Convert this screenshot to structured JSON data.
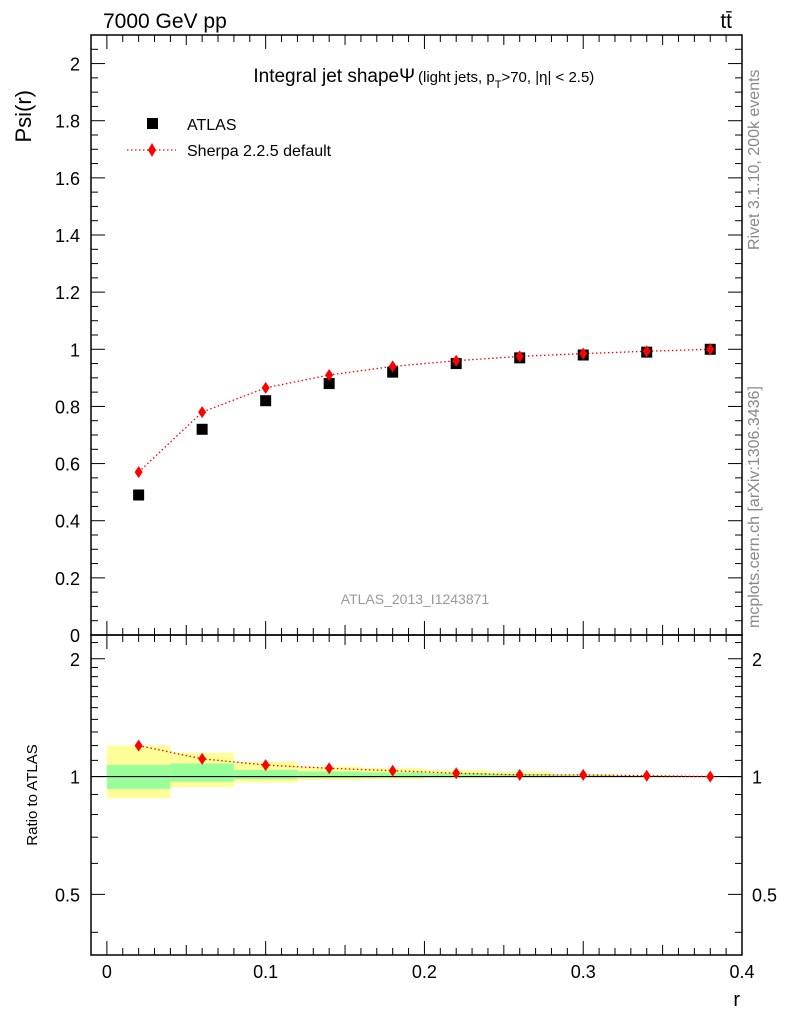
{
  "header": {
    "left": "7000 GeV pp",
    "right": "tt̄"
  },
  "side_labels": {
    "rivet": "Rivet 3.1.10,  200k events",
    "mcplots": "mcplots.cern.ch [arXiv:1306.3436]"
  },
  "chart_data": [
    {
      "type": "scatter",
      "title": "Integral jet shapeΨ",
      "title_sub": "(light jets, p",
      "title_sub_T": "T",
      "title_sub_rest": ">70, |η| < 2.5)",
      "ylabel": "Psi(r)",
      "analysis_label": "ATLAS_2013_I1243871",
      "xlim": [
        -0.01,
        0.4
      ],
      "ylim": [
        0,
        2.1
      ],
      "y_ticks": [
        "0.2",
        "0.4",
        "0.6",
        "0.8",
        "1",
        "1.2",
        "1.4",
        "1.6",
        "1.8",
        "2"
      ],
      "y_tick_values": [
        0.2,
        0.4,
        0.6,
        0.8,
        1.0,
        1.2,
        1.4,
        1.6,
        1.8,
        2.0
      ],
      "y_tick_zero": "0",
      "legend_position": "top-left",
      "series": [
        {
          "name": "ATLAS",
          "marker": "square",
          "color": "#000000",
          "x": [
            0.02,
            0.06,
            0.1,
            0.14,
            0.18,
            0.22,
            0.26,
            0.3,
            0.34,
            0.38
          ],
          "y": [
            0.49,
            0.72,
            0.82,
            0.88,
            0.92,
            0.95,
            0.97,
            0.98,
            0.99,
            1.0
          ]
        },
        {
          "name": "Sherpa 2.2.5 default",
          "marker": "diamond",
          "color": "#ff0000",
          "line": "dotted",
          "x": [
            0.02,
            0.06,
            0.1,
            0.14,
            0.18,
            0.22,
            0.26,
            0.3,
            0.34,
            0.38
          ],
          "y": [
            0.57,
            0.78,
            0.865,
            0.91,
            0.94,
            0.96,
            0.975,
            0.985,
            0.993,
            1.0
          ]
        }
      ]
    },
    {
      "type": "scatter",
      "ylabel": "Ratio to ATLAS",
      "xlabel": "r",
      "xlim": [
        -0.01,
        0.4
      ],
      "ylim": [
        0.35,
        2.3
      ],
      "scale": "log",
      "y_ticks": [
        "0.5",
        "1",
        "2"
      ],
      "y_tick_values": [
        0.5,
        1,
        2
      ],
      "x_ticks": [
        "0",
        "0.1",
        "0.2",
        "0.3",
        "0.4"
      ],
      "x_tick_values": [
        0,
        0.1,
        0.2,
        0.3,
        0.4
      ],
      "bands": {
        "yellow_color": "#ffff99",
        "green_color": "#99ff99",
        "bins": [
          {
            "lo": 0.0,
            "hi": 0.04,
            "yellow": [
              0.88,
              1.2
            ],
            "green": [
              0.93,
              1.07
            ]
          },
          {
            "lo": 0.04,
            "hi": 0.08,
            "yellow": [
              0.94,
              1.15
            ],
            "green": [
              0.97,
              1.08
            ]
          },
          {
            "lo": 0.08,
            "hi": 0.12,
            "yellow": [
              0.965,
              1.09
            ],
            "green": [
              0.985,
              1.04
            ]
          },
          {
            "lo": 0.12,
            "hi": 0.16,
            "yellow": [
              0.98,
              1.06
            ],
            "green": [
              0.99,
              1.03
            ]
          },
          {
            "lo": 0.16,
            "hi": 0.2,
            "yellow": [
              0.985,
              1.05
            ],
            "green": [
              0.993,
              1.025
            ]
          },
          {
            "lo": 0.2,
            "hi": 0.24,
            "yellow": [
              0.99,
              1.04
            ],
            "green": [
              0.995,
              1.02
            ]
          },
          {
            "lo": 0.24,
            "hi": 0.28,
            "yellow": [
              0.992,
              1.03
            ],
            "green": [
              0.996,
              1.015
            ]
          },
          {
            "lo": 0.28,
            "hi": 0.32,
            "yellow": [
              0.996,
              1.015
            ],
            "green": [
              0.998,
              1.008
            ]
          },
          {
            "lo": 0.32,
            "hi": 0.36,
            "yellow": [
              0.998,
              1.008
            ],
            "green": [
              0.999,
              1.004
            ]
          },
          {
            "lo": 0.36,
            "hi": 0.4,
            "yellow": [
              0.999,
              1.004
            ],
            "green": [
              0.9995,
              1.002
            ]
          }
        ]
      },
      "series": [
        {
          "name": "Sherpa 2.2.5 default",
          "marker": "diamond",
          "color": "#ff0000",
          "line": "dotted",
          "x": [
            0.02,
            0.06,
            0.1,
            0.14,
            0.18,
            0.22,
            0.26,
            0.3,
            0.34,
            0.38
          ],
          "y": [
            1.2,
            1.11,
            1.07,
            1.05,
            1.035,
            1.02,
            1.01,
            1.01,
            1.005,
            1.0
          ]
        }
      ]
    }
  ]
}
